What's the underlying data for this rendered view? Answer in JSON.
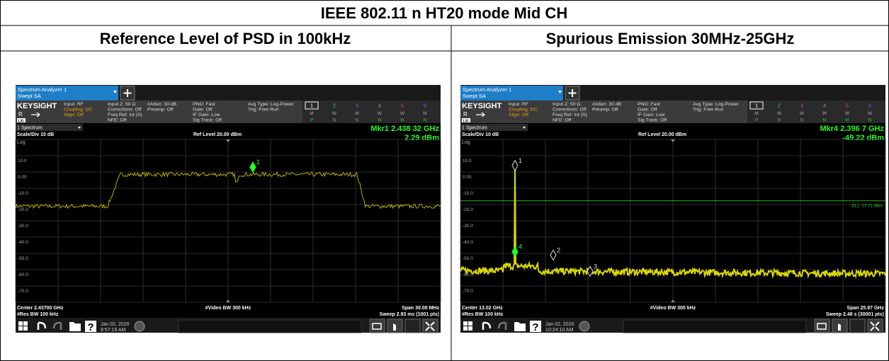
{
  "title": "IEEE 802.11 n HT20 mode Mid CH",
  "columns": [
    "Reference Level of PSD in 100kHz",
    "Spurious Emission 30MHz-25GHz"
  ],
  "screens": [
    {
      "tab": [
        "Spectrum Analyzer 1",
        "Swept SA"
      ],
      "brand": "KEYSIGHT",
      "mode": "R",
      "input": [
        "Input: RF",
        "Coupling: DC",
        "Align: Off"
      ],
      "info": [
        [
          "Input Z: 50 Ω",
          "Corrections: Off",
          "Freq Ref: Int (S)",
          "NFE: Off"
        ],
        [
          "#Atten: 30 dB",
          "Preamp: Off"
        ],
        [
          "PNO: Fast",
          "Gate: Off",
          "IF Gain: Low",
          "Sig Track: Off"
        ],
        [
          "Avg Type: Log-Power",
          "Trig: Free Run"
        ]
      ],
      "traces": [
        "1",
        "2",
        "3",
        "4",
        "5",
        "6"
      ],
      "trace_modes": [
        "M",
        "W",
        "W",
        "W",
        "W",
        "W"
      ],
      "trace_detectors": [
        "P",
        "N",
        "N",
        "N",
        "N",
        "N"
      ],
      "lxi": "LXI",
      "window": "1 Spectrum",
      "marker_readout": [
        "Mkr1 2.438 32 GHz",
        "2.29 dBm"
      ],
      "scale": "Scale/Div 10 dB",
      "ref_level": "Ref Level 20.00 dBm",
      "log": "Log",
      "y_labels": [
        "10.0",
        "0.00",
        "-10.0",
        "-20.0",
        "-30.0",
        "-40.0",
        "-50.0",
        "-60.0",
        "-70.0"
      ],
      "markers": [
        "1"
      ],
      "footer": [
        "Center 2.43700 GHz",
        "#Video BW 300 kHz",
        "Span 30.00 MHz",
        "#Res BW 100 kHz",
        "Sweep 2.93 ms (1001 pts)"
      ],
      "date": [
        "Jan 02, 2020",
        "8:57:19 AM"
      ],
      "help": "?"
    },
    {
      "tab": [
        "Spectrum Analyzer 1",
        "Swept SA"
      ],
      "brand": "KEYSIGHT",
      "mode": "R",
      "input": [
        "Input: RF",
        "Coupling: DC",
        "Align: Off"
      ],
      "info": [
        [
          "Input Z: 50 Ω",
          "Corrections: Off",
          "Freq Ref: Int (S)",
          "NFE: Off"
        ],
        [
          "#Atten: 30 dB",
          "Preamp: Off"
        ],
        [
          "PNO: Fast",
          "Gate: Off",
          "IF Gain: Low",
          "Sig Track: Off"
        ],
        [
          "Avg Type: Log-Power",
          "Trig: Free Run"
        ]
      ],
      "traces": [
        "1",
        "2",
        "3",
        "4",
        "5",
        "6"
      ],
      "trace_modes": [
        "M",
        "W",
        "W",
        "W",
        "W",
        "W"
      ],
      "trace_detectors": [
        "P",
        "N",
        "N",
        "N",
        "N",
        "N"
      ],
      "lxi": "LXI",
      "window": "1 Spectrum",
      "marker_readout": [
        "Mkr4 2.396 7 GHz",
        "-49.22 dBm"
      ],
      "scale": "Scale/Div 10 dB",
      "ref_level": "Ref Level 20.00 dBm",
      "log": "Log",
      "y_labels": [
        "10.0",
        "0.00",
        "-10.0",
        "-20.0",
        "-30.0",
        "-40.0",
        "-50.0",
        "-60.0",
        "-70.0"
      ],
      "display_line": "DL1 -17.71 dBm",
      "markers": [
        "1",
        "2",
        "3",
        "4"
      ],
      "footer": [
        "Center 13.02 GHz",
        "#Video BW 300 kHz",
        "Span 25.97 GHz",
        "#Res BW 100 kHz",
        "Sweep 2.48 s (30001 pts)"
      ],
      "date": [
        "Jan 02, 2020",
        "10:24:10 AM"
      ],
      "help": "?"
    }
  ]
}
